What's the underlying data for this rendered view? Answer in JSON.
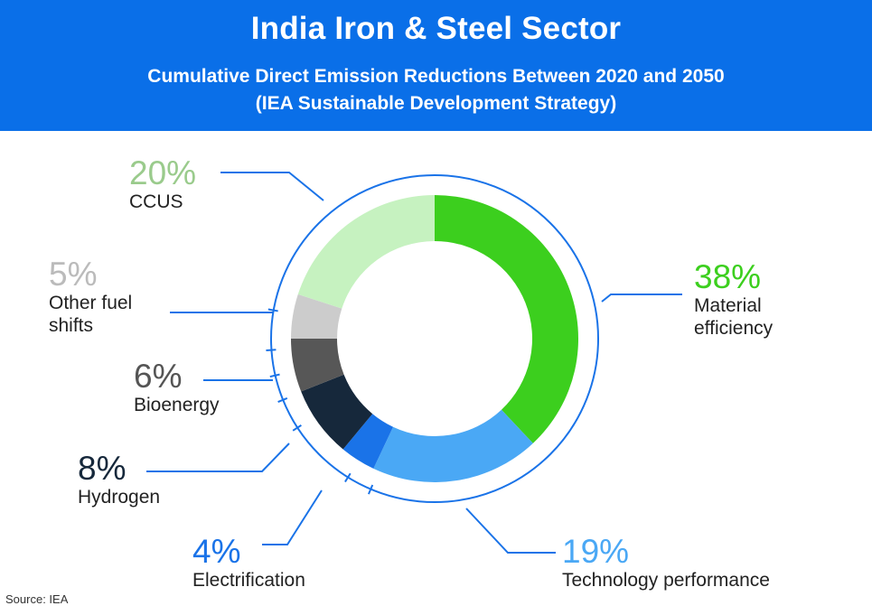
{
  "header": {
    "title": "India Iron & Steel Sector",
    "subtitle_line1": "Cumulative Direct Emission Reductions Between 2020 and 2050",
    "subtitle_line2": "(IEA Sustainable Development Strategy)"
  },
  "chart_data": {
    "type": "pie",
    "variant": "donut",
    "title": "India Iron & Steel Sector",
    "subtitle": "Cumulative Direct Emission Reductions Between 2020 and 2050 (IEA Sustainable Development Strategy)",
    "unit": "%",
    "slices": [
      {
        "label": "Material efficiency",
        "value": 38,
        "display": "38%",
        "color": "#3ccf1e"
      },
      {
        "label": "Technology performance",
        "value": 19,
        "display": "19%",
        "color": "#4aa8f5"
      },
      {
        "label": "Electrification",
        "value": 4,
        "display": "4%",
        "color": "#1a73e8"
      },
      {
        "label": "Hydrogen",
        "value": 8,
        "display": "8%",
        "color": "#16283b"
      },
      {
        "label": "Bioenergy",
        "value": 6,
        "display": "6%",
        "color": "#575757"
      },
      {
        "label": "Other fuel shifts",
        "value": 5,
        "display": "5%",
        "color": "#cccccc"
      },
      {
        "label": "CCUS",
        "value": 20,
        "display": "20%",
        "color": "#c6f2c0"
      }
    ],
    "label_colors": {
      "Material efficiency": "#3ccf1e",
      "Technology performance": "#4aa8f5",
      "Electrification": "#1a73e8",
      "Hydrogen": "#16283b",
      "Bioenergy": "#555555",
      "Other fuel shifts": "#bbbbbb",
      "CCUS": "#9acb8c"
    },
    "line_color": "#1a73e8"
  },
  "labels": {
    "material": {
      "pct": "38%",
      "name1": "Material",
      "name2": "efficiency"
    },
    "technology": {
      "pct": "19%",
      "name1": "Technology performance"
    },
    "electrification": {
      "pct": "4%",
      "name1": "Electrification"
    },
    "hydrogen": {
      "pct": "8%",
      "name1": "Hydrogen"
    },
    "bioenergy": {
      "pct": "6%",
      "name1": "Bioenergy"
    },
    "other": {
      "pct": "5%",
      "name1": "Other fuel",
      "name2": "shifts"
    },
    "ccus": {
      "pct": "20%",
      "name1": "CCUS"
    }
  },
  "source": "Source: IEA"
}
